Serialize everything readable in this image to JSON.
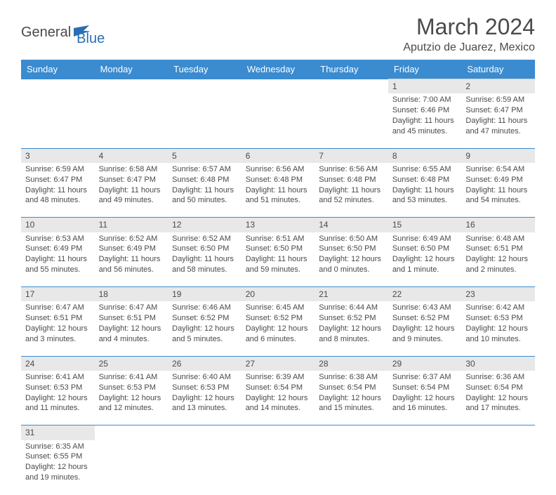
{
  "logo": {
    "text1": "General",
    "text2": "Blue"
  },
  "title": "March 2024",
  "location": "Aputzio de Juarez, Mexico",
  "colors": {
    "header_bg": "#3a8bd0",
    "header_text": "#ffffff",
    "daynum_bg": "#e8e8e8",
    "row_divider": "#3a8bd0",
    "body_text": "#4a4a4a",
    "logo_blue": "#2a6fb5"
  },
  "days_of_week": [
    "Sunday",
    "Monday",
    "Tuesday",
    "Wednesday",
    "Thursday",
    "Friday",
    "Saturday"
  ],
  "weeks": [
    {
      "nums": [
        "",
        "",
        "",
        "",
        "",
        "1",
        "2"
      ],
      "cells": [
        null,
        null,
        null,
        null,
        null,
        {
          "sunrise": "Sunrise: 7:00 AM",
          "sunset": "Sunset: 6:46 PM",
          "daylight": "Daylight: 11 hours and 45 minutes."
        },
        {
          "sunrise": "Sunrise: 6:59 AM",
          "sunset": "Sunset: 6:47 PM",
          "daylight": "Daylight: 11 hours and 47 minutes."
        }
      ]
    },
    {
      "nums": [
        "3",
        "4",
        "5",
        "6",
        "7",
        "8",
        "9"
      ],
      "cells": [
        {
          "sunrise": "Sunrise: 6:59 AM",
          "sunset": "Sunset: 6:47 PM",
          "daylight": "Daylight: 11 hours and 48 minutes."
        },
        {
          "sunrise": "Sunrise: 6:58 AM",
          "sunset": "Sunset: 6:47 PM",
          "daylight": "Daylight: 11 hours and 49 minutes."
        },
        {
          "sunrise": "Sunrise: 6:57 AM",
          "sunset": "Sunset: 6:48 PM",
          "daylight": "Daylight: 11 hours and 50 minutes."
        },
        {
          "sunrise": "Sunrise: 6:56 AM",
          "sunset": "Sunset: 6:48 PM",
          "daylight": "Daylight: 11 hours and 51 minutes."
        },
        {
          "sunrise": "Sunrise: 6:56 AM",
          "sunset": "Sunset: 6:48 PM",
          "daylight": "Daylight: 11 hours and 52 minutes."
        },
        {
          "sunrise": "Sunrise: 6:55 AM",
          "sunset": "Sunset: 6:48 PM",
          "daylight": "Daylight: 11 hours and 53 minutes."
        },
        {
          "sunrise": "Sunrise: 6:54 AM",
          "sunset": "Sunset: 6:49 PM",
          "daylight": "Daylight: 11 hours and 54 minutes."
        }
      ]
    },
    {
      "nums": [
        "10",
        "11",
        "12",
        "13",
        "14",
        "15",
        "16"
      ],
      "cells": [
        {
          "sunrise": "Sunrise: 6:53 AM",
          "sunset": "Sunset: 6:49 PM",
          "daylight": "Daylight: 11 hours and 55 minutes."
        },
        {
          "sunrise": "Sunrise: 6:52 AM",
          "sunset": "Sunset: 6:49 PM",
          "daylight": "Daylight: 11 hours and 56 minutes."
        },
        {
          "sunrise": "Sunrise: 6:52 AM",
          "sunset": "Sunset: 6:50 PM",
          "daylight": "Daylight: 11 hours and 58 minutes."
        },
        {
          "sunrise": "Sunrise: 6:51 AM",
          "sunset": "Sunset: 6:50 PM",
          "daylight": "Daylight: 11 hours and 59 minutes."
        },
        {
          "sunrise": "Sunrise: 6:50 AM",
          "sunset": "Sunset: 6:50 PM",
          "daylight": "Daylight: 12 hours and 0 minutes."
        },
        {
          "sunrise": "Sunrise: 6:49 AM",
          "sunset": "Sunset: 6:50 PM",
          "daylight": "Daylight: 12 hours and 1 minute."
        },
        {
          "sunrise": "Sunrise: 6:48 AM",
          "sunset": "Sunset: 6:51 PM",
          "daylight": "Daylight: 12 hours and 2 minutes."
        }
      ]
    },
    {
      "nums": [
        "17",
        "18",
        "19",
        "20",
        "21",
        "22",
        "23"
      ],
      "cells": [
        {
          "sunrise": "Sunrise: 6:47 AM",
          "sunset": "Sunset: 6:51 PM",
          "daylight": "Daylight: 12 hours and 3 minutes."
        },
        {
          "sunrise": "Sunrise: 6:47 AM",
          "sunset": "Sunset: 6:51 PM",
          "daylight": "Daylight: 12 hours and 4 minutes."
        },
        {
          "sunrise": "Sunrise: 6:46 AM",
          "sunset": "Sunset: 6:52 PM",
          "daylight": "Daylight: 12 hours and 5 minutes."
        },
        {
          "sunrise": "Sunrise: 6:45 AM",
          "sunset": "Sunset: 6:52 PM",
          "daylight": "Daylight: 12 hours and 6 minutes."
        },
        {
          "sunrise": "Sunrise: 6:44 AM",
          "sunset": "Sunset: 6:52 PM",
          "daylight": "Daylight: 12 hours and 8 minutes."
        },
        {
          "sunrise": "Sunrise: 6:43 AM",
          "sunset": "Sunset: 6:52 PM",
          "daylight": "Daylight: 12 hours and 9 minutes."
        },
        {
          "sunrise": "Sunrise: 6:42 AM",
          "sunset": "Sunset: 6:53 PM",
          "daylight": "Daylight: 12 hours and 10 minutes."
        }
      ]
    },
    {
      "nums": [
        "24",
        "25",
        "26",
        "27",
        "28",
        "29",
        "30"
      ],
      "cells": [
        {
          "sunrise": "Sunrise: 6:41 AM",
          "sunset": "Sunset: 6:53 PM",
          "daylight": "Daylight: 12 hours and 11 minutes."
        },
        {
          "sunrise": "Sunrise: 6:41 AM",
          "sunset": "Sunset: 6:53 PM",
          "daylight": "Daylight: 12 hours and 12 minutes."
        },
        {
          "sunrise": "Sunrise: 6:40 AM",
          "sunset": "Sunset: 6:53 PM",
          "daylight": "Daylight: 12 hours and 13 minutes."
        },
        {
          "sunrise": "Sunrise: 6:39 AM",
          "sunset": "Sunset: 6:54 PM",
          "daylight": "Daylight: 12 hours and 14 minutes."
        },
        {
          "sunrise": "Sunrise: 6:38 AM",
          "sunset": "Sunset: 6:54 PM",
          "daylight": "Daylight: 12 hours and 15 minutes."
        },
        {
          "sunrise": "Sunrise: 6:37 AM",
          "sunset": "Sunset: 6:54 PM",
          "daylight": "Daylight: 12 hours and 16 minutes."
        },
        {
          "sunrise": "Sunrise: 6:36 AM",
          "sunset": "Sunset: 6:54 PM",
          "daylight": "Daylight: 12 hours and 17 minutes."
        }
      ]
    },
    {
      "nums": [
        "31",
        "",
        "",
        "",
        "",
        "",
        ""
      ],
      "cells": [
        {
          "sunrise": "Sunrise: 6:35 AM",
          "sunset": "Sunset: 6:55 PM",
          "daylight": "Daylight: 12 hours and 19 minutes."
        },
        null,
        null,
        null,
        null,
        null,
        null
      ]
    }
  ]
}
